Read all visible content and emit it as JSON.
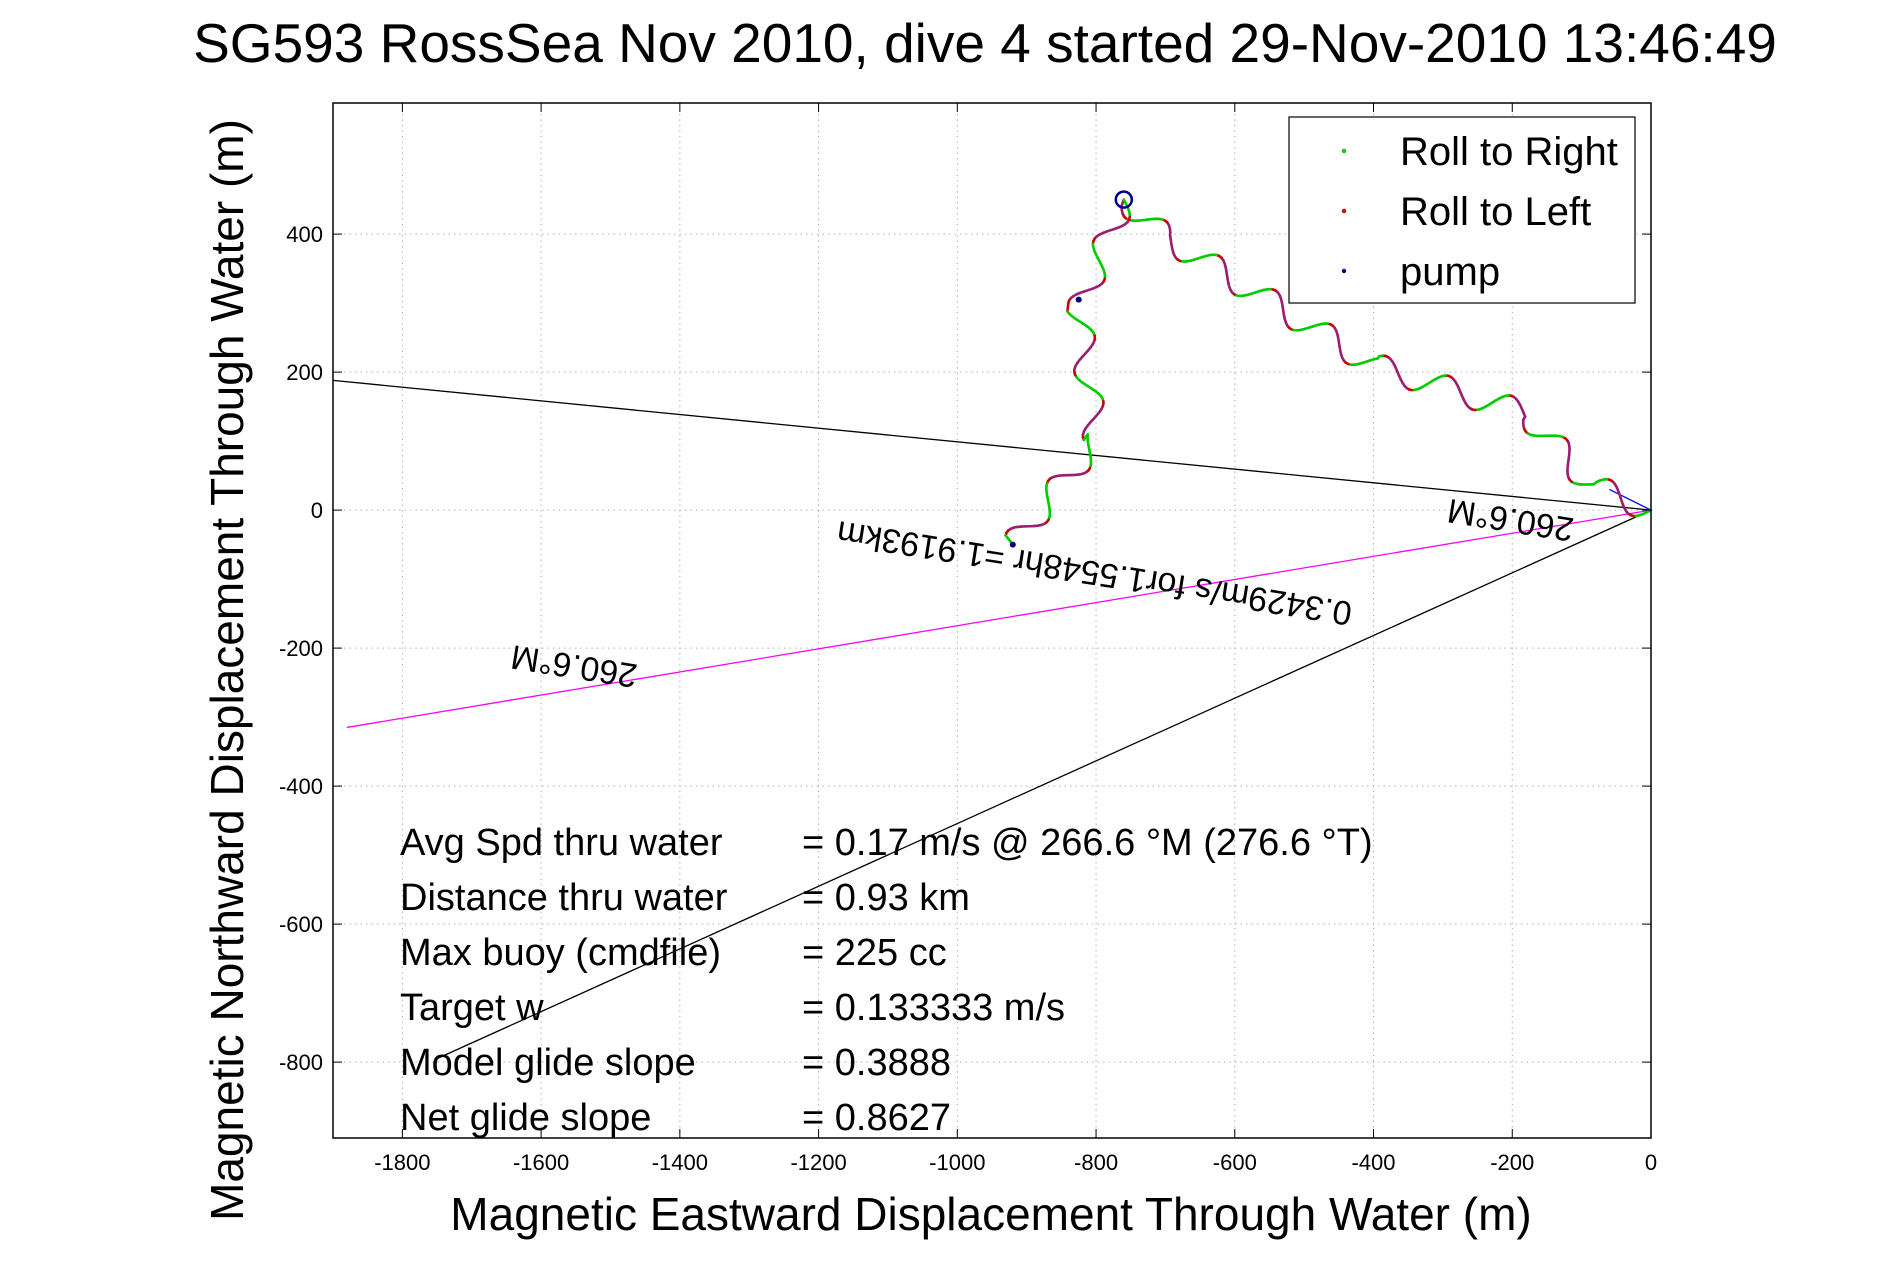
{
  "chart_data": {
    "type": "line",
    "title": "SG593 RossSea Nov 2010, dive 4 started 29-Nov-2010 13:46:49",
    "xlabel": "Magnetic Eastward Displacement Through Water (m)",
    "ylabel": "Magnetic Northward Displacement Through Water (m)",
    "xlim": [
      -1900,
      0
    ],
    "ylim": [
      -910,
      590
    ],
    "xticks": [
      -1800,
      -1600,
      -1400,
      -1200,
      -1000,
      -800,
      -600,
      -400,
      -200,
      0
    ],
    "yticks": [
      -800,
      -600,
      -400,
      -200,
      0,
      200,
      400
    ],
    "grid": true,
    "legend_position": "top-right",
    "legend": [
      {
        "label": "Roll to Right",
        "color": "#00cc00"
      },
      {
        "label": "Roll to Left",
        "color": "#cc0000"
      },
      {
        "label": "pump",
        "color": "#000080"
      }
    ],
    "track_colors": {
      "right": "#00cc00",
      "left": "#cc0000",
      "pump": "#000080",
      "blend": "#9b1f6e"
    },
    "waypoints_leg1": [
      [
        0,
        0
      ],
      [
        -85,
        35
      ],
      [
        -180,
        140
      ],
      [
        -400,
        210
      ],
      [
        -700,
        395
      ],
      [
        -760,
        450
      ]
    ],
    "waypoints_leg2": [
      [
        -760,
        450
      ],
      [
        -825,
        290
      ],
      [
        -800,
        100
      ],
      [
        -920,
        -50
      ]
    ],
    "wiggle_amplitude_m": 18,
    "wiggle_wavelength_m": 95,
    "lines": [
      {
        "name": "bearing-upper",
        "color": "#000000",
        "from": [
          0,
          0
        ],
        "to": [
          -1900,
          188
        ]
      },
      {
        "name": "bearing-lower",
        "color": "#000000",
        "from": [
          0,
          0
        ],
        "to": [
          -1750,
          -795
        ]
      },
      {
        "name": "current-vector",
        "color": "#ff00ff",
        "from": [
          0,
          0
        ],
        "to": [
          -1880,
          -315
        ]
      },
      {
        "name": "final-segment",
        "color": "#0000ff",
        "from": [
          -60,
          30
        ],
        "to": [
          0,
          0
        ]
      }
    ],
    "annotations": [
      {
        "text": "260.6°M",
        "x": -1550,
        "y": -210,
        "rotate": 189
      },
      {
        "text": "260.6°M",
        "x": -200,
        "y": 2,
        "rotate": 189
      },
      {
        "text": "0.3429m/s for1.5548hr =1.9193km",
        "x": -800,
        "y": -75,
        "rotate": 189
      }
    ],
    "stats": [
      {
        "label": "Avg Spd thru water",
        "value": "=  0.17 m/s @ 266.6 °M (276.6 °T)"
      },
      {
        "label": "Distance thru water",
        "value": "=  0.93 km"
      },
      {
        "label": "Max buoy (cmdfile)",
        "value": "= 225 cc"
      },
      {
        "label": "Target w",
        "value": "= 0.133333 m/s"
      },
      {
        "label": "Model glide slope",
        "value": "= 0.3888"
      },
      {
        "label": "Net glide slope",
        "value": "= 0.8627"
      }
    ]
  }
}
